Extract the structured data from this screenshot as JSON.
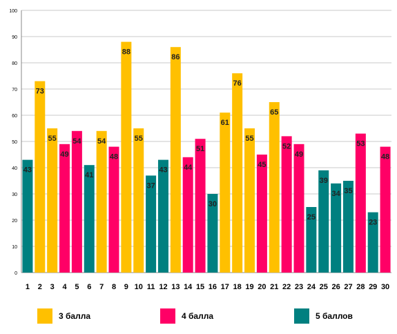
{
  "colors": {
    "grade3": "#FFC000",
    "grade4": "#FF0066",
    "grade5": "#008080",
    "grid": "#C8C8C8",
    "axis": "#888888"
  },
  "legend": [
    {
      "key": "grade3",
      "label": "3 балла"
    },
    {
      "key": "grade4",
      "label": "4 балла"
    },
    {
      "key": "grade5",
      "label": "5 баллов"
    }
  ],
  "chart_data": {
    "type": "bar",
    "title": "",
    "xlabel": "",
    "ylabel": "",
    "ylim": [
      0,
      100
    ],
    "yticks": [
      0,
      10,
      20,
      30,
      40,
      50,
      60,
      70,
      80,
      90,
      100
    ],
    "grid": true,
    "legend_position": "bottom",
    "categories": [
      "1",
      "2",
      "3",
      "4",
      "5",
      "6",
      "7",
      "8",
      "9",
      "10",
      "11",
      "12",
      "13",
      "14",
      "15",
      "16",
      "17",
      "18",
      "19",
      "20",
      "21",
      "22",
      "23",
      "24",
      "25",
      "26",
      "27",
      "28",
      "29",
      "30"
    ],
    "values": [
      43,
      73,
      55,
      49,
      54,
      41,
      54,
      48,
      88,
      55,
      37,
      43,
      86,
      44,
      51,
      30,
      61,
      76,
      55,
      45,
      65,
      52,
      49,
      25,
      39,
      34,
      35,
      53,
      23,
      48
    ],
    "groups": [
      "grade5",
      "grade3",
      "grade3",
      "grade4",
      "grade4",
      "grade5",
      "grade3",
      "grade4",
      "grade3",
      "grade3",
      "grade5",
      "grade5",
      "grade3",
      "grade4",
      "grade4",
      "grade5",
      "grade3",
      "grade3",
      "grade3",
      "grade4",
      "grade3",
      "grade4",
      "grade4",
      "grade5",
      "grade5",
      "grade5",
      "grade5",
      "grade4",
      "grade5",
      "grade4"
    ]
  }
}
